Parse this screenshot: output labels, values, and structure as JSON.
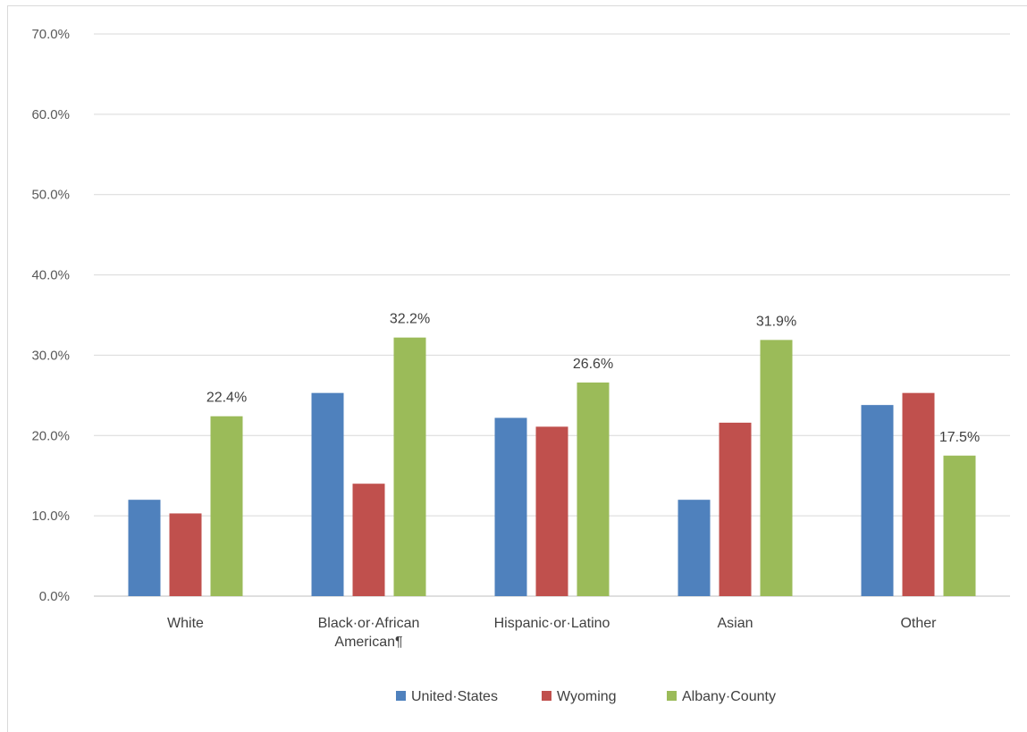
{
  "chart_data": {
    "type": "bar",
    "categories": [
      "White",
      "Black·or·African American¶",
      "Hispanic·or·Latino",
      "Asian",
      "Other"
    ],
    "category_lines": [
      [
        "White"
      ],
      [
        "Black·or·African",
        "American¶"
      ],
      [
        "Hispanic·or·Latino"
      ],
      [
        "Asian"
      ],
      [
        "Other"
      ]
    ],
    "series": [
      {
        "name": "United·States",
        "color": "#4f81bd",
        "values": [
          12.0,
          25.3,
          22.2,
          12.0,
          23.8
        ]
      },
      {
        "name": "Wyoming",
        "color": "#c0504d",
        "values": [
          10.3,
          14.0,
          21.1,
          21.6,
          25.3
        ]
      },
      {
        "name": "Albany·County",
        "color": "#9bbb59",
        "values": [
          22.4,
          32.2,
          26.6,
          31.9,
          17.5
        ]
      }
    ],
    "data_labels": {
      "series_index": 2,
      "labels": [
        "22.4%",
        "32.2%",
        "26.6%",
        "31.9%",
        "17.5%"
      ]
    },
    "ylim": [
      0,
      70
    ],
    "yticks": [
      0,
      10,
      20,
      30,
      40,
      50,
      60,
      70
    ],
    "ytick_labels": [
      "0.0%",
      "10.0%",
      "20.0%",
      "30.0%",
      "40.0%",
      "50.0%",
      "60.0%",
      "70.0%"
    ],
    "grid": true,
    "legend": "bottom"
  }
}
